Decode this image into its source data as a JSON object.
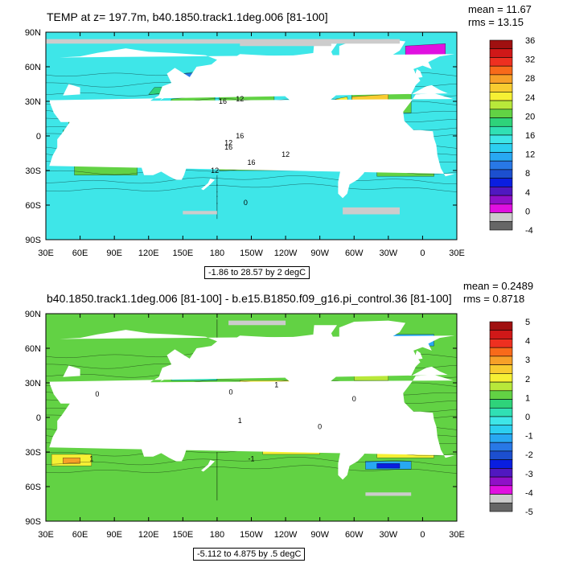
{
  "panels": [
    {
      "title": "TEMP at z= 197.7m, b40.1850.track1.1deg.006 [81-100]",
      "mean_label": "mean = 11.67",
      "rms_label": "rms = 13.15",
      "subtitle": "-1.86 to 28.57 by 2 degC"
    },
    {
      "title": "b40.1850.track1.1deg.006 [81-100] - b.e15.B1850.f09_g16.pi_control.36 [81-100]",
      "mean_label": "mean = 0.2489",
      "rms_label": "rms = 0.8718",
      "subtitle": "-5.112 to 4.875 by .5 degC"
    }
  ],
  "chart_data": [
    {
      "type": "heatmap",
      "title": "TEMP at z= 197.7m, b40.1850.track1.1deg.006 [81-100]",
      "x_ticks": [
        "30E",
        "60E",
        "90E",
        "120E",
        "150E",
        "180",
        "150W",
        "120W",
        "90W",
        "60W",
        "30W",
        "0",
        "30E"
      ],
      "y_ticks": [
        "90N",
        "60N",
        "30N",
        "0",
        "30S",
        "60S",
        "90S"
      ],
      "colorbar_labels": [
        "36",
        "32",
        "28",
        "24",
        "20",
        "16",
        "12",
        "8",
        "4",
        "0",
        "-4"
      ],
      "colorbar_colors": [
        "#a01010",
        "#d01818",
        "#ee3020",
        "#f86a1a",
        "#f7a028",
        "#f8cc30",
        "#f6f034",
        "#b8e83a",
        "#62d244",
        "#2ed37a",
        "#30e0b4",
        "#3ee6e8",
        "#2ccff0",
        "#28a8f2",
        "#2878e6",
        "#1c4fcf",
        "#0a1ee0",
        "#5018c0",
        "#9010c8",
        "#e010e0",
        "#cccccc",
        "#666666"
      ],
      "contour_labels": [
        "16",
        "12",
        "16",
        "12",
        "16",
        "12",
        "16",
        "12",
        "0"
      ],
      "mean": 11.67,
      "rms": 13.15,
      "range_note": "-1.86 to 28.57 by 2 degC"
    },
    {
      "type": "heatmap",
      "title": "b40.1850.track1.1deg.006 [81-100] - b.e15.B1850.f09_g16.pi_control.36 [81-100]",
      "x_ticks": [
        "30E",
        "60E",
        "90E",
        "120E",
        "150E",
        "180",
        "150W",
        "120W",
        "90W",
        "60W",
        "30W",
        "0",
        "30E"
      ],
      "y_ticks": [
        "90N",
        "60N",
        "30N",
        "0",
        "30S",
        "60S",
        "90S"
      ],
      "colorbar_labels": [
        "5",
        "4",
        "3",
        "2",
        "1",
        "0",
        "-1",
        "-2",
        "-3",
        "-4",
        "-5"
      ],
      "colorbar_colors": [
        "#a01010",
        "#d01818",
        "#ee3020",
        "#f86a1a",
        "#f7a028",
        "#f8cc30",
        "#f6f034",
        "#b8e83a",
        "#62d244",
        "#2ed37a",
        "#30e0b4",
        "#3ee6e8",
        "#2ccff0",
        "#28a8f2",
        "#2878e6",
        "#1c4fcf",
        "#0a1ee0",
        "#5018c0",
        "#9010c8",
        "#e010e0",
        "#cccccc",
        "#666666"
      ],
      "contour_labels": [
        "0",
        "1",
        "0",
        "0",
        "1",
        "0",
        "1",
        "-1"
      ],
      "mean": 0.2489,
      "rms": 0.8718,
      "range_note": "-5.112 to 4.875 by .5 degC"
    }
  ]
}
